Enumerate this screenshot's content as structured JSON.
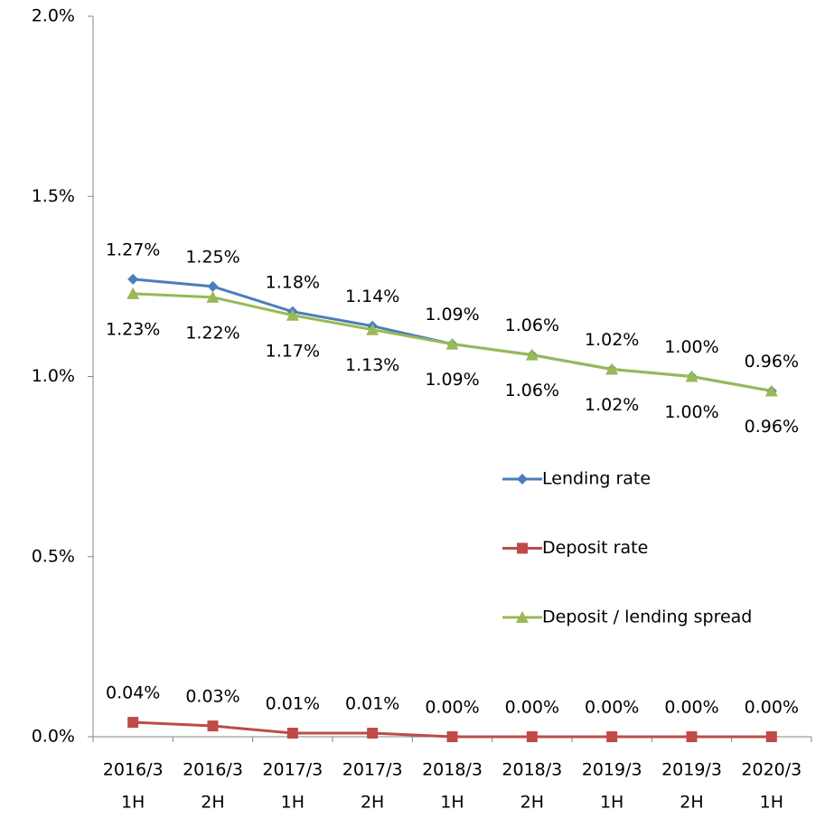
{
  "chart_data": {
    "type": "line",
    "categories": [
      [
        "2016/3",
        "1H"
      ],
      [
        "2016/3",
        "2H"
      ],
      [
        "2017/3",
        "1H"
      ],
      [
        "2017/3",
        "2H"
      ],
      [
        "2018/3",
        "1H"
      ],
      [
        "2018/3",
        "2H"
      ],
      [
        "2019/3",
        "1H"
      ],
      [
        "2019/3",
        "2H"
      ],
      [
        "2020/3",
        "1H"
      ]
    ],
    "series": [
      {
        "name": "Lending rate",
        "color": "#4a7ebb",
        "marker": "diamond",
        "label_side": "above",
        "values": [
          1.27,
          1.25,
          1.18,
          1.14,
          1.09,
          1.06,
          1.02,
          1.0,
          0.96
        ],
        "value_labels": [
          "1.27%",
          "1.25%",
          "1.18%",
          "1.14%",
          "1.09%",
          "1.06%",
          "1.02%",
          "1.00%",
          "0.96%"
        ]
      },
      {
        "name": "Deposit rate",
        "color": "#be4b48",
        "marker": "square",
        "label_side": "above",
        "values": [
          0.04,
          0.03,
          0.01,
          0.01,
          0.0,
          0.0,
          0.0,
          0.0,
          0.0
        ],
        "value_labels": [
          "0.04%",
          "0.03%",
          "0.01%",
          "0.01%",
          "0.00%",
          "0.00%",
          "0.00%",
          "0.00%",
          "0.00%"
        ]
      },
      {
        "name": "Deposit / lending spread",
        "color": "#98b954",
        "marker": "triangle",
        "label_side": "below",
        "values": [
          1.23,
          1.22,
          1.17,
          1.13,
          1.09,
          1.06,
          1.02,
          1.0,
          0.96
        ],
        "value_labels": [
          "1.23%",
          "1.22%",
          "1.17%",
          "1.13%",
          "1.09%",
          "1.06%",
          "1.02%",
          "1.00%",
          "0.96%"
        ]
      }
    ],
    "ylim": [
      0,
      2
    ],
    "yticks": [
      {
        "value": 0,
        "label": "0.0%"
      },
      {
        "value": 0.5,
        "label": "0.5%"
      },
      {
        "value": 1,
        "label": "1.0%"
      },
      {
        "value": 1.5,
        "label": "1.5%"
      },
      {
        "value": 2,
        "label": "2.0%"
      }
    ],
    "grid": false,
    "legend": "right"
  }
}
